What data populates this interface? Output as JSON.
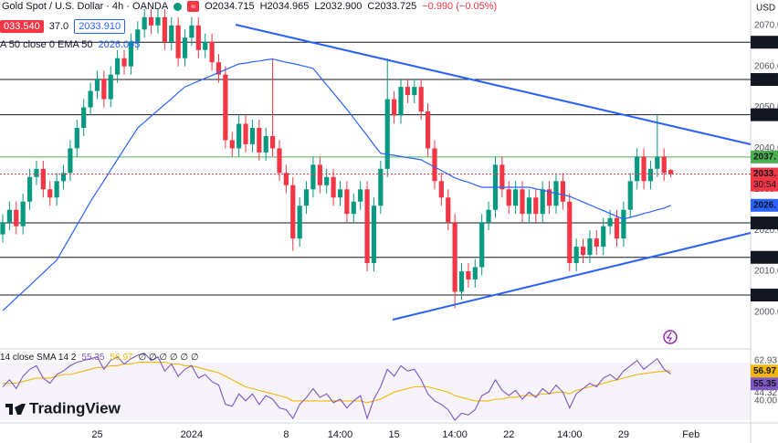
{
  "header": {
    "symbol": "Gold Spot / U.S. Dollar · 4h · OANDA",
    "ohlc": [
      "O2034.715",
      "H2034.965",
      "L2032.900",
      "C2033.725"
    ],
    "change": "−0.990 (−0.05%)",
    "sell": "033.540",
    "spread": "37.0",
    "buy": "2033.910"
  },
  "branding": "TradingView",
  "chart_data": [
    {
      "type": "candlestick",
      "currency": "USD",
      "ylim": [
        1991.5,
        2076.2
      ],
      "grid": false,
      "yticks": [
        {
          "value": 2070,
          "label": "2070.0"
        },
        {
          "value": 2060,
          "label": "2060.0"
        },
        {
          "value": 2050,
          "label": "2050.0"
        },
        {
          "value": 2040,
          "label": "2040.0"
        },
        {
          "value": 2030,
          "label": "2030.0"
        },
        {
          "value": 2020,
          "label": "2020.0"
        },
        {
          "value": 2010,
          "label": "2010.0"
        },
        {
          "value": 2000,
          "label": "2000.0"
        }
      ],
      "colors": {
        "up": "#089981",
        "down": "#f23645"
      },
      "categories": [
        null,
        null,
        null,
        null,
        null,
        null,
        null,
        null,
        null,
        null,
        null,
        null,
        null,
        null,
        "25",
        null,
        null,
        null,
        null,
        null,
        null,
        null,
        null,
        null,
        null,
        null,
        null,
        null,
        "2024",
        null,
        null,
        null,
        null,
        null,
        null,
        null,
        null,
        null,
        null,
        null,
        null,
        null,
        "8",
        null,
        null,
        null,
        null,
        null,
        null,
        null,
        "14:00",
        null,
        null,
        null,
        null,
        null,
        null,
        null,
        "15",
        null,
        null,
        null,
        null,
        null,
        null,
        null,
        null,
        "14:00",
        null,
        null,
        null,
        null,
        null,
        null,
        null,
        "22",
        null,
        null,
        null,
        null,
        null,
        null,
        null,
        null,
        "14:00",
        null,
        null,
        null,
        null,
        null,
        null,
        null,
        "29",
        null,
        null,
        null,
        null,
        null,
        null,
        null,
        null,
        null,
        "Feb",
        null
      ],
      "open": [
        2019,
        2022,
        2025,
        2021,
        2027,
        2033,
        2035,
        2030,
        2028,
        2032,
        2034,
        2040,
        2045,
        2050,
        2054,
        2057,
        2052,
        2058,
        2062,
        2060,
        2066,
        2069,
        2072,
        2070,
        2072,
        2066,
        2070,
        2062,
        2067,
        2070,
        2064,
        2066,
        2061,
        2058,
        2042,
        2040,
        2046,
        2041,
        2045,
        2039,
        2043,
        2040,
        2034,
        2031,
        2018,
        2026,
        2030,
        2036,
        2031,
        2033,
        2028,
        2030,
        2024,
        2027,
        2030,
        2012,
        2026,
        2035,
        2052,
        2048,
        2055,
        2053,
        2055,
        2049,
        2040,
        2032,
        2028,
        2022,
        2005,
        2010,
        2008,
        2011,
        2022,
        2025,
        2036,
        2030,
        2026,
        2030,
        2024,
        2028,
        2024,
        2030,
        2026,
        2032,
        2027,
        2012,
        2016,
        2014,
        2018,
        2016,
        2021,
        2023,
        2018,
        2025,
        2032,
        2038,
        2032,
        2035,
        2038,
        2034.715,
        null,
        null,
        null,
        null
      ],
      "high": [
        2024,
        2027,
        2027,
        2029,
        2035,
        2037,
        2037,
        2032,
        2034,
        2036,
        2042,
        2047,
        2052,
        2056,
        2059,
        2059,
        2060,
        2064,
        2064,
        2068,
        2071,
        2074,
        2074,
        2074,
        2074,
        2072,
        2072,
        2069,
        2072,
        2072,
        2068,
        2068,
        2063,
        2060,
        2044,
        2048,
        2048,
        2047,
        2047,
        2045,
        2062,
        2042,
        2036,
        2033,
        2028,
        2032,
        2038,
        2038,
        2035,
        2035,
        2032,
        2032,
        2029,
        2032,
        2032,
        2028,
        2037,
        2062,
        2054,
        2057,
        2057,
        2057,
        2057,
        2051,
        2042,
        2034,
        2030,
        2024,
        2012,
        2012,
        2013,
        2024,
        2027,
        2038,
        2038,
        2032,
        2032,
        2032,
        2030,
        2030,
        2032,
        2032,
        2034,
        2034,
        2029,
        2018,
        2018,
        2020,
        2020,
        2023,
        2025,
        2025,
        2027,
        2034,
        2040,
        2040,
        2037,
        2048,
        2040,
        2034.965,
        null,
        null,
        null,
        null
      ],
      "low": [
        2017,
        2020,
        2019,
        2019,
        2025,
        2031,
        2028,
        2026,
        2026,
        2030,
        2032,
        2038,
        2043,
        2048,
        2052,
        2050,
        2050,
        2056,
        2058,
        2058,
        2064,
        2067,
        2068,
        2068,
        2064,
        2064,
        2060,
        2060,
        2065,
        2062,
        2062,
        2059,
        2056,
        2040,
        2038,
        2038,
        2039,
        2039,
        2037,
        2037,
        2038,
        2032,
        2029,
        2015,
        2016,
        2024,
        2028,
        2029,
        2029,
        2026,
        2026,
        2022,
        2022,
        2025,
        2010,
        2010,
        2024,
        2033,
        2046,
        2046,
        2051,
        2051,
        2047,
        2038,
        2030,
        2026,
        2020,
        2001,
        2003,
        2006,
        2006,
        2009,
        2020,
        2023,
        2028,
        2024,
        2024,
        2022,
        2022,
        2022,
        2022,
        2024,
        2024,
        2025,
        2010,
        2010,
        2012,
        2012,
        2014,
        2014,
        2019,
        2016,
        2016,
        2023,
        2030,
        2030,
        2030,
        2033,
        2032,
        2032.9,
        null,
        null,
        null,
        null
      ],
      "close": [
        2022,
        2025,
        2021,
        2027,
        2033,
        2035,
        2030,
        2028,
        2032,
        2034,
        2040,
        2045,
        2050,
        2054,
        2057,
        2052,
        2058,
        2062,
        2060,
        2066,
        2069,
        2072,
        2070,
        2072,
        2066,
        2070,
        2062,
        2067,
        2070,
        2064,
        2066,
        2061,
        2058,
        2042,
        2040,
        2046,
        2041,
        2045,
        2039,
        2043,
        2040,
        2034,
        2031,
        2018,
        2026,
        2030,
        2036,
        2031,
        2033,
        2028,
        2030,
        2024,
        2027,
        2030,
        2012,
        2026,
        2035,
        2052,
        2048,
        2055,
        2053,
        2055,
        2049,
        2040,
        2032,
        2028,
        2022,
        2005,
        2010,
        2008,
        2011,
        2022,
        2025,
        2036,
        2030,
        2026,
        2030,
        2024,
        2028,
        2024,
        2030,
        2026,
        2032,
        2027,
        2012,
        2016,
        2014,
        2018,
        2016,
        2021,
        2023,
        2018,
        2025,
        2032,
        2038,
        2032,
        2035,
        2038,
        2034,
        2033.725,
        null,
        null,
        null,
        null
      ],
      "overlays": [
        {
          "type": "line",
          "name": "A 50 close 0 EMA 50",
          "color": "#2962ff",
          "last_label": "2026.",
          "values": [
            2000.4,
            2001.9,
            2003.5,
            2005.0,
            2006.5,
            2008.1,
            2009.6,
            2011.2,
            2012.7,
            2015.6,
            2018.4,
            2021.3,
            2024.1,
            2027.0,
            2029.6,
            2032.1,
            2034.7,
            2037.3,
            2039.9,
            2042.4,
            2045.0,
            2046.4,
            2047.9,
            2049.3,
            2050.7,
            2052.1,
            2053.6,
            2055.0,
            2055.7,
            2056.4,
            2057.1,
            2057.8,
            2058.5,
            2059.2,
            2059.9,
            2060.6,
            2060.8,
            2061.1,
            2061.3,
            2061.6,
            2061.8,
            2061.4,
            2061.0,
            2060.7,
            2060.3,
            2059.9,
            2059.5,
            2057.5,
            2055.5,
            2053.5,
            2051.5,
            2049.5,
            2047.4,
            2045.2,
            2043.1,
            2040.9,
            2038.8,
            2038.5,
            2038.3,
            2038.0,
            2037.7,
            2037.5,
            2037.2,
            2036.3,
            2035.4,
            2034.6,
            2033.7,
            2032.8,
            2032.2,
            2031.7,
            2031.1,
            2030.5,
            2030.5,
            2030.5,
            2030.5,
            2030.5,
            2030.5,
            2030.5,
            2030.5,
            2030.1,
            2029.8,
            2029.4,
            2029.0,
            2028.7,
            2028.3,
            2027.6,
            2026.9,
            2026.2,
            2025.5,
            2024.8,
            2024.1,
            2023.4,
            2022.7,
            2023.2,
            2023.6,
            2024.1,
            2024.5,
            2025.0,
            2025.4,
            2026.095,
            null,
            null,
            null,
            null
          ]
        }
      ],
      "levels": [
        {
          "value": 2065.9,
          "label": "2065.",
          "color": "#131722"
        },
        {
          "value": 2056.8,
          "label": "2056.",
          "color": "#131722"
        },
        {
          "value": 2048.2,
          "label": "2048.",
          "color": "#131722"
        },
        {
          "value": 2037.9,
          "label": "2037.",
          "color": "#4caf50"
        },
        {
          "value": 2021.8,
          "label": "2021.",
          "color": "#131722"
        },
        {
          "value": 2013.4,
          "label": "2013.",
          "color": "#131722"
        },
        {
          "value": 2004.2,
          "label": "2004.",
          "color": "#131722"
        }
      ],
      "last_price": {
        "value": 2033.725,
        "label": "2033.",
        "countdown": "30:54",
        "color": "#f23645"
      }
    },
    {
      "type": "line",
      "title": "14 close SMA 14 2",
      "placeholders": "∅ ∅ ∅ ∅ ∅ ∅",
      "ylim": [
        28,
        68
      ],
      "yticks": [
        62.93,
        44.32,
        {
          "value": 40,
          "label": "40.00"
        }
      ],
      "series": [
        {
          "color": "#7e57c2",
          "values": [
            48,
            52,
            47,
            54,
            58,
            60,
            53,
            50,
            55,
            57,
            60,
            62,
            63,
            64,
            65,
            58,
            63,
            65,
            61,
            64,
            66,
            67,
            63,
            65,
            57,
            61,
            54,
            58,
            60,
            53,
            55,
            51,
            49,
            38,
            37,
            44,
            40,
            44,
            38,
            43,
            41,
            36,
            35,
            30,
            38,
            42,
            47,
            42,
            44,
            39,
            41,
            36,
            40,
            43,
            30,
            41,
            48,
            58,
            54,
            60,
            57,
            58,
            52,
            44,
            40,
            38,
            35,
            29,
            33,
            32,
            35,
            43,
            45,
            52,
            46,
            43,
            46,
            41,
            45,
            42,
            47,
            44,
            49,
            45,
            36,
            44,
            47,
            50,
            48,
            53,
            55,
            52,
            57,
            60,
            63,
            58,
            61,
            64,
            58,
            55.35,
            null,
            null,
            null,
            null
          ]
        },
        {
          "color": "#f2b705",
          "values": [
            50,
            50,
            50,
            51,
            52,
            53,
            53,
            53,
            54,
            55,
            55,
            56,
            57,
            58,
            59,
            59,
            60,
            60,
            61,
            61,
            62,
            62,
            62,
            62,
            62,
            61,
            61,
            60,
            60,
            59,
            58,
            57,
            56,
            54,
            52,
            50,
            48,
            47,
            46,
            45,
            44,
            43,
            42,
            40,
            40,
            40,
            40,
            40,
            40,
            40,
            40,
            40,
            40,
            40,
            39,
            40,
            41,
            43,
            45,
            46,
            47,
            48,
            48,
            48,
            47,
            46,
            45,
            43,
            42,
            41,
            40,
            40,
            40,
            41,
            41,
            42,
            42,
            43,
            43,
            43,
            44,
            44,
            45,
            45,
            44,
            46,
            47,
            48,
            49,
            50,
            51,
            52,
            53,
            54,
            55,
            55.5,
            56,
            56.5,
            56.8,
            56.97,
            null,
            null,
            null,
            null
          ]
        }
      ]
    }
  ]
}
